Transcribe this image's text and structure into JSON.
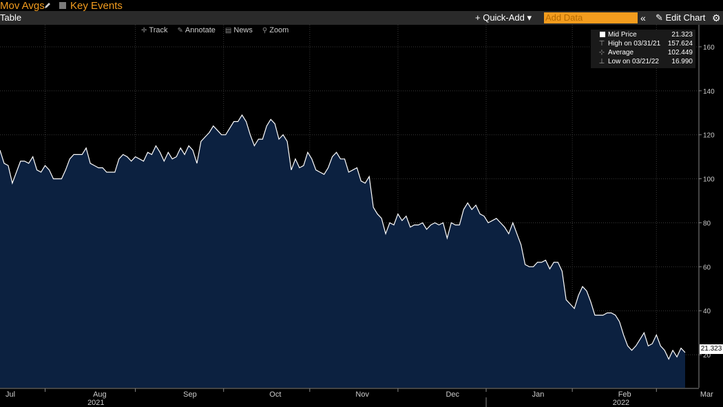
{
  "header": {
    "mov_avgs_label": "Mov Avgs",
    "key_events_label": "Key Events"
  },
  "toolbar": {
    "table_label": "Table",
    "quick_add_label": "+ Quick-Add ▾",
    "add_data_placeholder": "Add Data",
    "collapse_label": "«",
    "edit_chart_label": "Edit Chart"
  },
  "chart_tools": [
    {
      "label": "Track",
      "icon": "crosshair-icon"
    },
    {
      "label": "Annotate",
      "icon": "annotate-icon"
    },
    {
      "label": "News",
      "icon": "news-icon"
    },
    {
      "label": "Zoom",
      "icon": "zoom-icon"
    }
  ],
  "legend": {
    "mid_label": "Mid Price",
    "mid_value": "21.323",
    "high_label": "High on 03/31/21",
    "high_value": "157.624",
    "avg_label": "Average",
    "avg_value": "102.449",
    "low_label": "Low on 03/21/22",
    "low_value": "16.990"
  },
  "last_price_tag": "21.323",
  "colors": {
    "accent": "#f39c1e",
    "area_fill": "#0c2140",
    "line": "#ffffff",
    "background": "#000000"
  },
  "chart_data": {
    "type": "area",
    "series": [
      {
        "name": "Mid Price",
        "values": [
          113,
          107,
          106,
          98,
          103,
          108,
          108,
          107,
          110,
          104,
          103,
          106,
          104,
          100,
          100,
          100,
          104,
          109,
          111,
          111,
          111,
          114,
          107,
          106,
          105,
          105,
          103,
          103,
          103,
          109,
          111,
          110,
          108,
          110,
          109,
          108,
          112,
          111,
          115,
          112,
          108,
          112,
          109,
          110,
          114,
          111,
          115,
          113,
          107,
          117,
          119,
          121,
          124,
          122,
          120,
          120,
          123,
          126,
          126,
          129,
          126,
          120,
          115,
          118,
          118,
          124,
          127,
          125,
          118,
          120,
          117,
          104,
          109,
          105,
          106,
          112,
          109,
          104,
          103,
          102,
          105,
          110,
          112,
          109,
          109,
          103,
          104,
          105,
          99,
          98,
          101,
          87,
          84,
          82,
          75,
          80,
          79,
          84,
          81,
          83,
          78,
          79,
          79,
          80,
          77,
          79,
          80,
          79,
          80,
          73,
          80,
          79,
          79,
          86,
          89,
          86,
          88,
          84,
          83,
          80,
          81,
          82,
          80,
          78,
          75,
          80,
          75,
          70,
          61,
          60,
          60,
          62,
          62,
          63,
          59,
          62,
          62,
          58,
          45,
          43,
          41,
          47,
          51,
          49,
          44,
          38,
          38,
          38,
          39,
          39,
          38,
          35,
          29,
          24,
          22,
          24,
          27,
          30,
          24,
          25,
          29,
          24,
          22,
          18,
          22,
          19,
          23,
          21
        ]
      }
    ],
    "x_labels": [
      {
        "label": "Jul",
        "index": 0
      },
      {
        "label": "Aug",
        "index": 22
      },
      {
        "label": "Sep",
        "index": 44
      },
      {
        "label": "Oct",
        "index": 65
      },
      {
        "label": "Nov",
        "index": 86
      },
      {
        "label": "Dec",
        "index": 108
      },
      {
        "label": "Jan",
        "index": 129
      },
      {
        "label": "Feb",
        "index": 150
      },
      {
        "label": "Mar",
        "index": 170
      }
    ],
    "year_labels": [
      {
        "label": "2021",
        "index": 22
      },
      {
        "label": "2022",
        "index": 150
      }
    ],
    "y_ticks": [
      20,
      40,
      60,
      80,
      100,
      120,
      140,
      160
    ],
    "ylim": [
      5,
      170
    ],
    "grid": true,
    "legend_position": "top-right"
  }
}
